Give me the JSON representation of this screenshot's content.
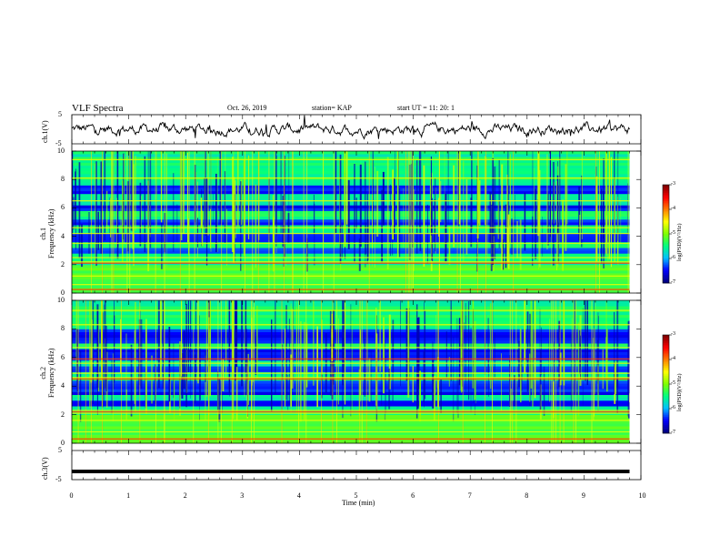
{
  "header": {
    "title": "VLF Spectra",
    "date": "Oct. 26, 2019",
    "station": "station= KAP",
    "start": "start  UT =   11: 20: 1"
  },
  "colors": {
    "ink": "#000000",
    "colormap": [
      "#00007f",
      "#0000ff",
      "#00bfff",
      "#00ff7f",
      "#7fff00",
      "#ffff00",
      "#ff7f00",
      "#ff0000",
      "#7f0000"
    ]
  },
  "chart_data": [
    {
      "type": "line",
      "name": "ch1-waveform",
      "ylabel": "ch.1(V)",
      "ylim": [
        -5,
        5
      ],
      "y_ticks": [
        "5",
        "-5"
      ],
      "xlim": [
        0,
        10
      ]
    },
    {
      "type": "heatmap",
      "name": "ch1-spectrogram",
      "ylabel": "ch.1\nFrequency (kHz)",
      "ylim": [
        0,
        10
      ],
      "y_ticks": [
        "0",
        "2",
        "4",
        "6",
        "8",
        "10"
      ],
      "xlim": [
        0,
        10
      ],
      "data_ends_min": 9.8,
      "colorbar": {
        "label": "log(PSD)(V²/Hz)",
        "range": [
          -7,
          -3
        ],
        "ticks": [
          "-3",
          "-4",
          "-5",
          "-6",
          "-7"
        ]
      },
      "dark_bands_khz": [
        [
          7.1,
          7.5
        ],
        [
          5.7,
          6.1
        ],
        [
          4.8,
          5.3
        ],
        [
          3.6,
          3.9
        ],
        [
          2.9,
          3.2
        ],
        [
          4.0,
          4.3
        ]
      ],
      "bright_lines_khz": [
        0.6,
        1.2,
        2.2,
        3.5,
        4.6,
        6.5,
        8.1,
        9.4,
        2.5,
        4.2
      ],
      "red_lines_khz": [
        0.25,
        2.1
      ]
    },
    {
      "type": "heatmap",
      "name": "ch2-spectrogram",
      "ylabel": "ch.2\nFrequency (kHz)",
      "ylim": [
        0,
        10
      ],
      "y_ticks": [
        "0",
        "2",
        "4",
        "6",
        "8",
        "10"
      ],
      "xlim": [
        0,
        10
      ],
      "data_ends_min": 9.8,
      "colorbar": {
        "label": "log(PSD)(V²/Hz)",
        "range": [
          -7,
          -3
        ],
        "ticks": [
          "-3",
          "-4",
          "-5",
          "-6",
          "-7"
        ]
      },
      "dark_bands_khz": [
        [
          7.0,
          8.0
        ],
        [
          5.8,
          6.6
        ],
        [
          3.5,
          4.4
        ],
        [
          2.6,
          3.0
        ],
        [
          5.0,
          5.4
        ]
      ],
      "bright_lines_khz": [
        0.8,
        1.6,
        2.3,
        4.6,
        5.6,
        6.7,
        8.3,
        9.3,
        2.1,
        4.9
      ],
      "red_lines_khz": [
        0.3,
        2.2,
        5.9,
        4.5
      ]
    },
    {
      "type": "line",
      "name": "ch3-waveform",
      "ylabel": "ch.3(V)",
      "ylim": [
        -5,
        5
      ],
      "y_ticks": [
        "5",
        "-5"
      ],
      "xlim": [
        0,
        10
      ],
      "level_v": -2.2
    }
  ],
  "x_axis": {
    "label": "Time  (min)",
    "ticks": [
      "0",
      "1",
      "2",
      "3",
      "4",
      "5",
      "6",
      "7",
      "8",
      "9",
      "10"
    ]
  }
}
